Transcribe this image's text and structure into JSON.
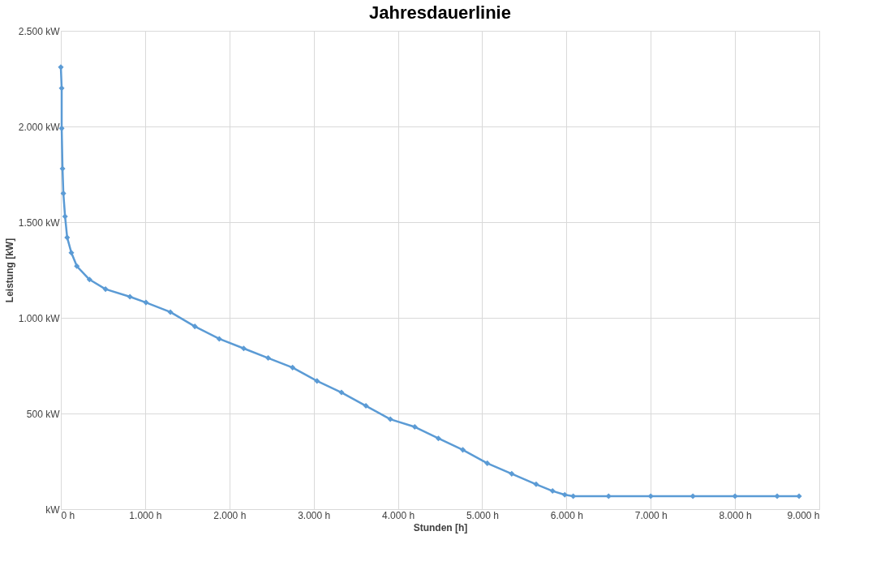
{
  "chart_data": {
    "type": "line",
    "title": "Jahresdauerlinie",
    "xlabel": "Stunden [h]",
    "ylabel": "Leistung [kW]",
    "x": [
      0,
      10,
      10,
      20,
      30,
      50,
      75,
      125,
      190,
      340,
      530,
      820,
      1010,
      1300,
      1590,
      1880,
      2170,
      2460,
      2750,
      3040,
      3330,
      3620,
      3910,
      4200,
      4480,
      4770,
      5060,
      5350,
      5640,
      5835,
      5980,
      6080,
      6500,
      7000,
      7500,
      8000,
      8500,
      8760
    ],
    "series": [
      {
        "color": "#5b9bd5",
        "values": [
          2310,
          2200,
          1990,
          1780,
          1650,
          1530,
          1420,
          1340,
          1270,
          1200,
          1150,
          1110,
          1080,
          1030,
          955,
          890,
          840,
          790,
          740,
          670,
          610,
          540,
          470,
          430,
          370,
          310,
          240,
          185,
          130,
          95,
          75,
          68,
          68,
          68,
          68,
          68,
          68,
          68
        ]
      }
    ],
    "xlim": [
      0,
      9000
    ],
    "ylim": [
      0,
      2500
    ],
    "xticks": [
      {
        "value": 0,
        "label": "0 h"
      },
      {
        "value": 1000,
        "label": "1.000 h"
      },
      {
        "value": 2000,
        "label": "2.000 h"
      },
      {
        "value": 3000,
        "label": "3.000 h"
      },
      {
        "value": 4000,
        "label": "4.000 h"
      },
      {
        "value": 5000,
        "label": "5.000 h"
      },
      {
        "value": 6000,
        "label": "6.000 h"
      },
      {
        "value": 7000,
        "label": "7.000 h"
      },
      {
        "value": 8000,
        "label": "8.000 h"
      },
      {
        "value": 9000,
        "label": "9.000 h"
      }
    ],
    "yticks": [
      {
        "value": 0,
        "label": "kW"
      },
      {
        "value": 500,
        "label": "500 kW"
      },
      {
        "value": 1000,
        "label": "1.000 kW"
      },
      {
        "value": 1500,
        "label": "1.500 kW"
      },
      {
        "value": 2000,
        "label": "2.000 kW"
      },
      {
        "value": 2500,
        "label": "2.500 kW"
      }
    ],
    "grid": true,
    "marker": "diamond",
    "line_style": "solid"
  }
}
